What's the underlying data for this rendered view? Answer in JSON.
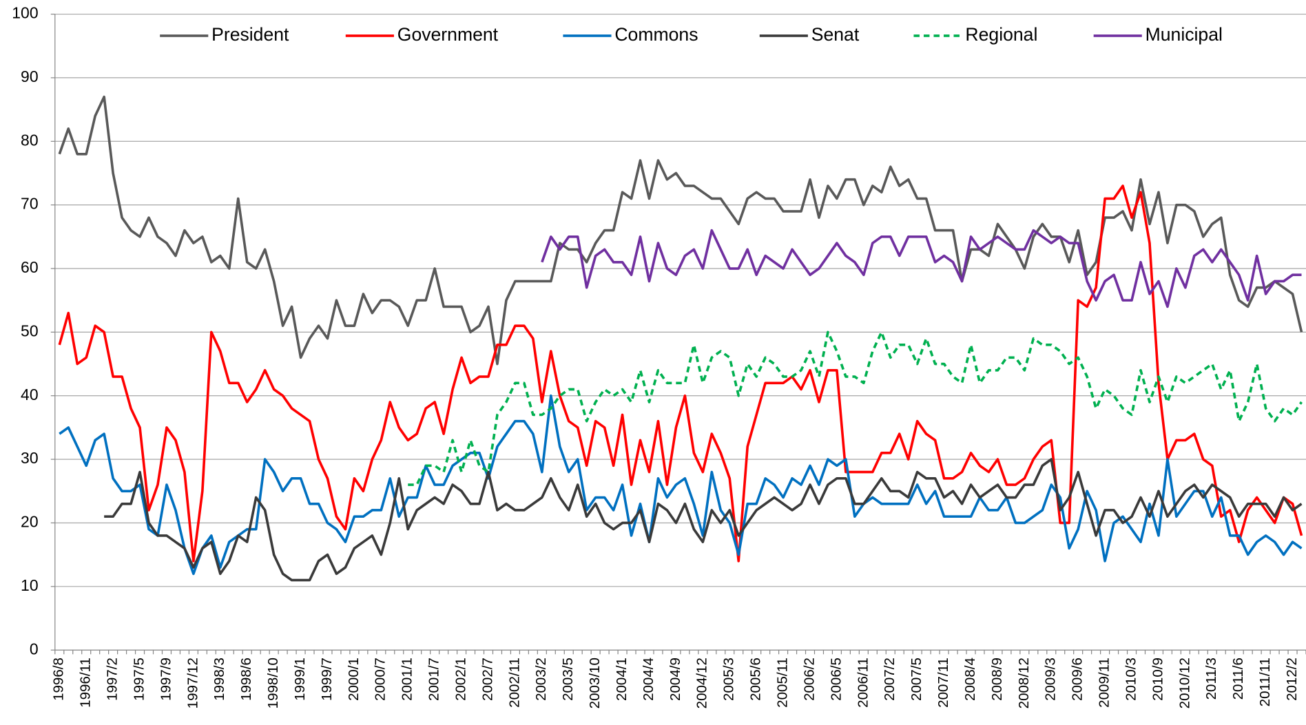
{
  "chart_data": {
    "type": "line",
    "categories": [
      "1996/8",
      null,
      null,
      "1996/11",
      null,
      null,
      "1997/2",
      null,
      null,
      "1997/5",
      null,
      null,
      "1997/9",
      null,
      null,
      "1997/12",
      null,
      null,
      "1998/3",
      null,
      null,
      "1998/6",
      null,
      null,
      "1998/10",
      null,
      null,
      "1999/1",
      null,
      null,
      "1999/7",
      null,
      null,
      "2000/1",
      null,
      null,
      "2000/7",
      null,
      null,
      "2001/1",
      null,
      null,
      "2001/7",
      null,
      null,
      "2002/1",
      null,
      null,
      "2002/7",
      null,
      null,
      "2002/11",
      null,
      null,
      "2003/2",
      null,
      null,
      "2003/5",
      null,
      null,
      "2003/10",
      null,
      null,
      "2004/1",
      null,
      null,
      "2004/4",
      null,
      null,
      "2004/9",
      null,
      null,
      "2004/12",
      null,
      null,
      "2005/3",
      null,
      null,
      "2005/6",
      null,
      null,
      "2005/11",
      null,
      null,
      "2006/2",
      null,
      null,
      "2006/5",
      null,
      null,
      "2006/11",
      null,
      null,
      "2007/2",
      null,
      null,
      "2007/5",
      null,
      null,
      "2007/11",
      null,
      null,
      "2008/4",
      null,
      null,
      "2008/9",
      null,
      null,
      "2008/12",
      null,
      null,
      "2009/3",
      null,
      null,
      "2009/6",
      null,
      null,
      "2009/11",
      null,
      null,
      "2010/3",
      null,
      null,
      "2010/9",
      null,
      null,
      "2010/12",
      null,
      null,
      "2011/3",
      null,
      null,
      "2011/6",
      null,
      null,
      "2011/11",
      null,
      null,
      "2012/2",
      null
    ],
    "ylim": [
      0,
      100
    ],
    "yticks": [
      0,
      10,
      20,
      30,
      40,
      50,
      60,
      70,
      80,
      90,
      100
    ],
    "grid": true,
    "legend": "top",
    "series": [
      {
        "name": "President",
        "color": "#595959",
        "style": "solid",
        "values": [
          78,
          82,
          78,
          78,
          84,
          87,
          75,
          68,
          66,
          65,
          68,
          65,
          64,
          62,
          66,
          64,
          65,
          61,
          62,
          60,
          71,
          61,
          60,
          63,
          58,
          51,
          54,
          46,
          49,
          51,
          49,
          55,
          51,
          51,
          56,
          53,
          55,
          55,
          54,
          51,
          55,
          55,
          60,
          54,
          54,
          54,
          50,
          51,
          54,
          45,
          55,
          58,
          58,
          58,
          58,
          58,
          64,
          63,
          63,
          61,
          64,
          66,
          66,
          72,
          71,
          77,
          71,
          77,
          74,
          75,
          73,
          73,
          72,
          71,
          71,
          69,
          67,
          71,
          72,
          71,
          71,
          69,
          69,
          69,
          74,
          68,
          73,
          71,
          74,
          74,
          70,
          73,
          72,
          76,
          73,
          74,
          71,
          71,
          66,
          66,
          66,
          58,
          63,
          63,
          62,
          67,
          65,
          63,
          60,
          65,
          67,
          65,
          65,
          61,
          66,
          59,
          61,
          68,
          68,
          69,
          66,
          74,
          67,
          72,
          64,
          70,
          70,
          69,
          65,
          67,
          68,
          59,
          55,
          54,
          57,
          57,
          58,
          57,
          56,
          50
        ]
      },
      {
        "name": "Government",
        "color": "#ff0000",
        "style": "solid",
        "values": [
          48,
          53,
          45,
          46,
          51,
          50,
          43,
          43,
          38,
          35,
          22,
          26,
          35,
          33,
          28,
          14,
          25,
          50,
          47,
          42,
          42,
          39,
          41,
          44,
          41,
          40,
          38,
          37,
          36,
          30,
          27,
          21,
          19,
          27,
          25,
          30,
          33,
          39,
          35,
          33,
          34,
          38,
          39,
          34,
          41,
          46,
          42,
          43,
          43,
          48,
          48,
          51,
          51,
          49,
          39,
          47,
          40,
          36,
          35,
          29,
          36,
          35,
          29,
          37,
          26,
          33,
          28,
          36,
          26,
          35,
          40,
          31,
          28,
          34,
          31,
          27,
          14,
          32,
          37,
          42,
          42,
          42,
          43,
          41,
          44,
          39,
          44,
          44,
          28,
          28,
          28,
          28,
          31,
          31,
          34,
          30,
          36,
          34,
          33,
          27,
          27,
          28,
          31,
          29,
          28,
          30,
          26,
          26,
          27,
          30,
          32,
          33,
          20,
          20,
          55,
          54,
          57,
          71,
          71,
          73,
          68,
          72,
          64,
          42,
          30,
          33,
          33,
          34,
          30,
          29,
          21,
          22,
          17,
          22,
          24,
          22,
          20,
          24,
          23,
          18
        ]
      },
      {
        "name": "Commons",
        "color": "#0070c0",
        "style": "solid",
        "values": [
          34,
          35,
          32,
          29,
          33,
          34,
          27,
          25,
          25,
          26,
          19,
          18,
          26,
          22,
          16,
          12,
          16,
          18,
          13,
          17,
          18,
          19,
          19,
          30,
          28,
          25,
          27,
          27,
          23,
          23,
          20,
          19,
          17,
          21,
          21,
          22,
          22,
          27,
          21,
          24,
          24,
          29,
          26,
          26,
          29,
          30,
          31,
          31,
          27,
          32,
          34,
          36,
          36,
          34,
          28,
          40,
          32,
          28,
          30,
          22,
          24,
          24,
          22,
          26,
          18,
          23,
          17,
          27,
          24,
          26,
          27,
          23,
          18,
          28,
          22,
          20,
          15,
          23,
          23,
          27,
          26,
          24,
          27,
          26,
          29,
          26,
          30,
          29,
          30,
          21,
          23,
          24,
          23,
          23,
          23,
          23,
          26,
          23,
          25,
          21,
          21,
          21,
          21,
          24,
          22,
          22,
          24,
          20,
          20,
          21,
          22,
          26,
          24,
          16,
          19,
          25,
          22,
          14,
          20,
          21,
          19,
          17,
          23,
          18,
          30,
          21,
          23,
          25,
          25,
          21,
          24,
          18,
          18,
          15,
          17,
          18,
          17,
          15,
          17,
          16
        ]
      },
      {
        "name": "Senat",
        "color": "#3a3a3a",
        "style": "solid",
        "values": [
          null,
          null,
          null,
          null,
          null,
          21,
          21,
          23,
          23,
          28,
          20,
          18,
          18,
          17,
          16,
          13,
          16,
          17,
          12,
          14,
          18,
          17,
          24,
          22,
          15,
          12,
          11,
          11,
          11,
          14,
          15,
          12,
          13,
          16,
          17,
          18,
          15,
          20,
          27,
          19,
          22,
          23,
          24,
          23,
          26,
          25,
          23,
          23,
          28,
          22,
          23,
          22,
          22,
          23,
          24,
          27,
          24,
          22,
          26,
          21,
          23,
          20,
          19,
          20,
          20,
          22,
          17,
          23,
          22,
          20,
          23,
          19,
          17,
          22,
          20,
          22,
          18,
          20,
          22,
          23,
          24,
          23,
          22,
          23,
          26,
          23,
          26,
          27,
          27,
          23,
          23,
          25,
          27,
          25,
          25,
          24,
          28,
          27,
          27,
          24,
          25,
          23,
          26,
          24,
          25,
          26,
          24,
          24,
          26,
          26,
          29,
          30,
          22,
          24,
          28,
          23,
          18,
          22,
          22,
          20,
          21,
          24,
          21,
          25,
          21,
          23,
          25,
          26,
          24,
          26,
          25,
          24,
          21,
          23,
          23,
          23,
          21,
          24,
          22,
          23
        ]
      },
      {
        "name": "Regional",
        "color": "#00b050",
        "style": "dashed",
        "values": [
          null,
          null,
          null,
          null,
          null,
          null,
          null,
          null,
          null,
          null,
          null,
          null,
          null,
          null,
          null,
          null,
          null,
          null,
          null,
          null,
          null,
          null,
          null,
          null,
          null,
          null,
          null,
          null,
          null,
          null,
          null,
          null,
          null,
          null,
          null,
          null,
          null,
          null,
          null,
          26,
          26,
          29,
          29,
          28,
          33,
          28,
          33,
          29,
          28,
          37,
          39,
          42,
          42,
          37,
          37,
          38,
          40,
          41,
          41,
          36,
          39,
          41,
          40,
          41,
          39,
          44,
          39,
          44,
          42,
          42,
          42,
          48,
          42,
          46,
          47,
          46,
          40,
          45,
          43,
          46,
          45,
          43,
          43,
          44,
          47,
          43,
          50,
          47,
          43,
          43,
          42,
          47,
          50,
          46,
          48,
          48,
          45,
          49,
          45,
          45,
          43,
          42,
          48,
          42,
          44,
          44,
          46,
          46,
          44,
          49,
          48,
          48,
          47,
          45,
          46,
          43,
          38,
          41,
          40,
          38,
          37,
          44,
          39,
          43,
          39,
          43,
          42,
          43,
          44,
          45,
          41,
          44,
          36,
          39,
          45,
          38,
          36,
          38,
          37,
          39
        ]
      },
      {
        "name": "Municipal",
        "color": "#7030a0",
        "style": "solid",
        "values": [
          null,
          null,
          null,
          null,
          null,
          null,
          null,
          null,
          null,
          null,
          null,
          null,
          null,
          null,
          null,
          null,
          null,
          null,
          null,
          null,
          null,
          null,
          null,
          null,
          null,
          null,
          null,
          null,
          null,
          null,
          null,
          null,
          null,
          null,
          null,
          null,
          null,
          null,
          null,
          null,
          null,
          null,
          null,
          null,
          null,
          null,
          null,
          null,
          null,
          null,
          null,
          null,
          null,
          null,
          61,
          65,
          63,
          65,
          65,
          57,
          62,
          63,
          61,
          61,
          59,
          65,
          58,
          64,
          60,
          59,
          62,
          63,
          60,
          66,
          63,
          60,
          60,
          63,
          59,
          62,
          61,
          60,
          63,
          61,
          59,
          60,
          62,
          64,
          62,
          61,
          59,
          64,
          65,
          65,
          62,
          65,
          65,
          65,
          61,
          62,
          61,
          58,
          65,
          63,
          64,
          65,
          64,
          63,
          63,
          66,
          65,
          64,
          65,
          64,
          64,
          58,
          55,
          58,
          59,
          55,
          55,
          61,
          56,
          58,
          54,
          60,
          57,
          62,
          63,
          61,
          63,
          61,
          59,
          55,
          62,
          56,
          58,
          58,
          59,
          59
        ]
      }
    ]
  }
}
